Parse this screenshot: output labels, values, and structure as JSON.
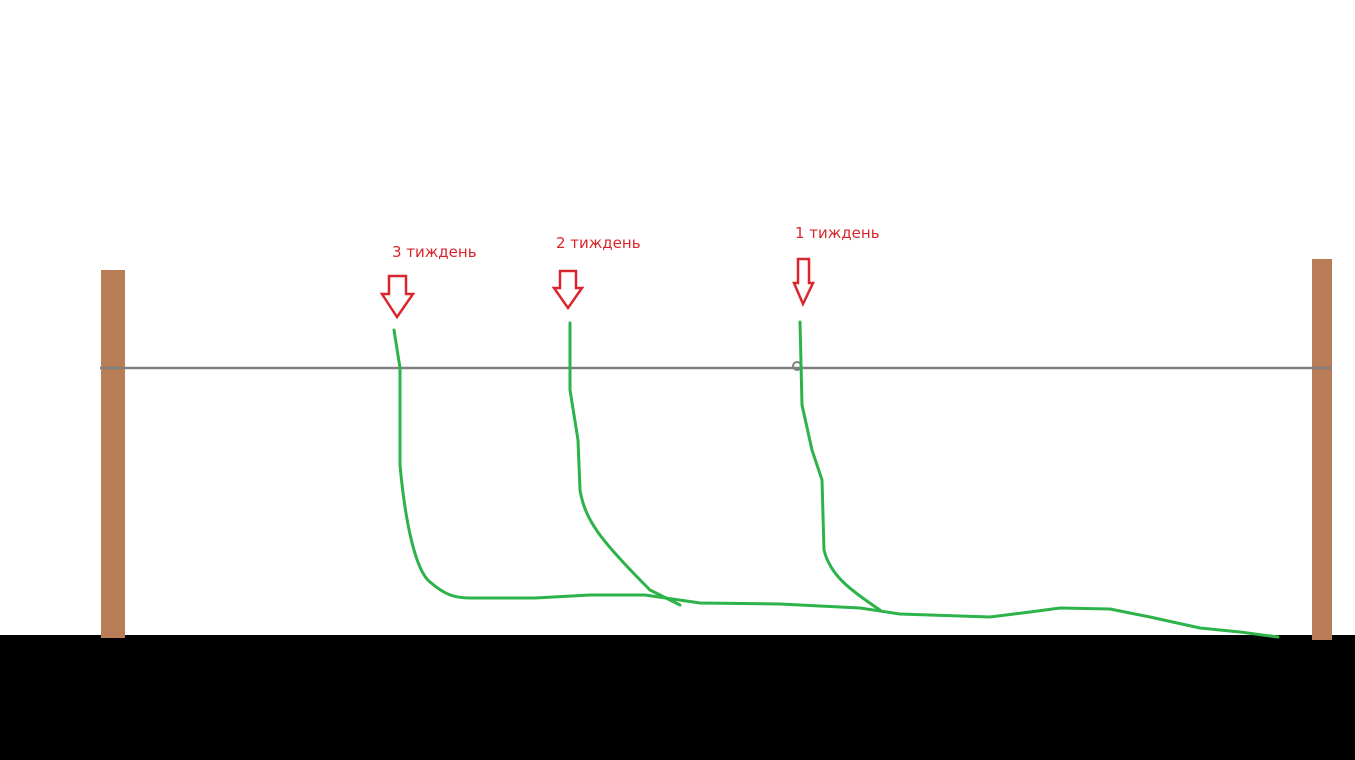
{
  "labels": [
    "3 тиждень",
    "2 тиждень",
    "1 тиждень"
  ]
}
